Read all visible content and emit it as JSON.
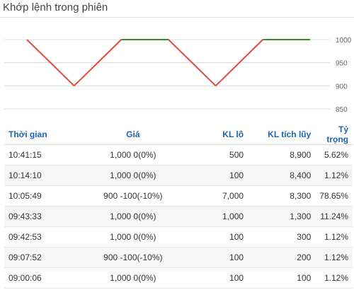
{
  "panel": {
    "title": "Khớp lệnh trong phiên"
  },
  "chart": {
    "y_ticks": [
      "1000",
      "950",
      "900",
      "850"
    ],
    "tick_values": [
      1000,
      950,
      900,
      850
    ],
    "prices_oldest_first": [
      1000,
      900,
      1000,
      1000,
      900,
      1000,
      1000
    ],
    "up_color": "#3a8a2a",
    "down_color": "#e24a3b"
  },
  "table": {
    "headers": [
      "Thời gian",
      "Giá",
      "KL lô",
      "KL tích lũy",
      "Tỷ trọng"
    ],
    "rows": [
      {
        "time": "10:41:15",
        "price": "1,000 0(0%)",
        "dir": "ref",
        "vol": "500",
        "acc": "8,900",
        "ratio": "5.62%"
      },
      {
        "time": "10:14:10",
        "price": "1,000 0(0%)",
        "dir": "ref",
        "vol": "100",
        "acc": "8,400",
        "ratio": "1.12%"
      },
      {
        "time": "10:05:49",
        "price": "900 -100(-10%)",
        "dir": "down",
        "vol": "7,000",
        "acc": "8,300",
        "ratio": "78.65%"
      },
      {
        "time": "09:43:33",
        "price": "1,000 0(0%)",
        "dir": "ref",
        "vol": "1,000",
        "acc": "1,300",
        "ratio": "11.24%"
      },
      {
        "time": "09:42:53",
        "price": "1,000 0(0%)",
        "dir": "ref",
        "vol": "100",
        "acc": "300",
        "ratio": "1.12%"
      },
      {
        "time": "09:07:52",
        "price": "900 -100(-10%)",
        "dir": "down",
        "vol": "100",
        "acc": "200",
        "ratio": "1.12%"
      },
      {
        "time": "09:00:06",
        "price": "1,000 0(0%)",
        "dir": "ref",
        "vol": "100",
        "acc": "100",
        "ratio": "1.12%"
      }
    ]
  },
  "colors": {
    "header_text": "#1c64b4",
    "ref_price": "#f2a000",
    "down_price": "#e0332f"
  }
}
